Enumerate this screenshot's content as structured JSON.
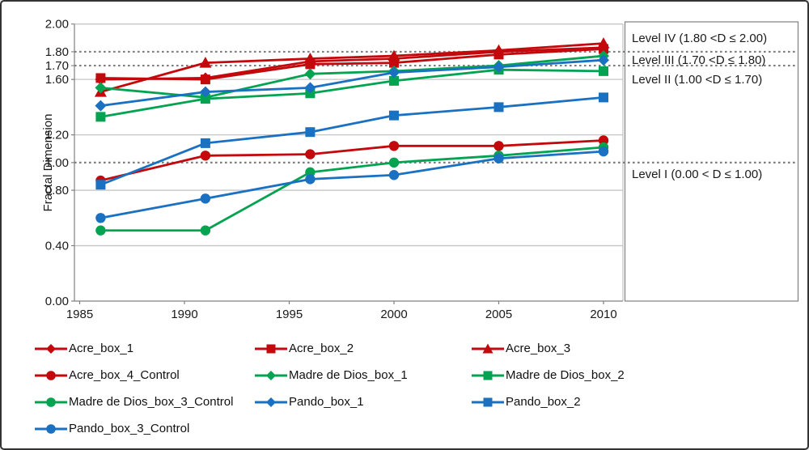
{
  "window": {
    "background": "#ffffff",
    "border_color": "#333333"
  },
  "colors": {
    "acre_red": "#C3090C",
    "madre_green": "#04A351",
    "pando_blue": "#1A71C2",
    "solid_gridline": "#C6C6C6",
    "dotted_gridline": "#7F7F7F",
    "axis_line": "#808080",
    "text": "#1a1a1a"
  },
  "chart_data": {
    "type": "line",
    "title": "",
    "xlabel": "",
    "ylabel": "Fractal Dimension",
    "xlim": [
      1985,
      2011
    ],
    "ylim": [
      0.0,
      2.0
    ],
    "grid": "horizontal-only",
    "legend_position": "bottom",
    "x": [
      1986,
      1991,
      1996,
      2000,
      2005,
      2010
    ],
    "xtick_labels": [
      "1985",
      "1990",
      "1995",
      "2000",
      "2005",
      "2010"
    ],
    "xticks": [
      1985,
      1990,
      1995,
      2000,
      2005,
      2010
    ],
    "ytick_labels": [
      "0.00",
      "0.40",
      "0.80",
      "1.00",
      "1.20",
      "1.60",
      "1.70",
      "1.80",
      "2.00"
    ],
    "yticks": [
      0.0,
      0.4,
      0.8,
      1.0,
      1.2,
      1.6,
      1.7,
      1.8,
      2.0
    ],
    "solid_gridlines": [
      0.4,
      0.8,
      1.2,
      1.6,
      2.0
    ],
    "dotted_gridlines": [
      1.0,
      1.7,
      1.8
    ],
    "series": [
      {
        "name": "Acre_box_1",
        "color": "#C3090C",
        "marker": "diamond",
        "values": [
          1.6,
          1.61,
          1.73,
          1.75,
          1.8,
          1.83
        ]
      },
      {
        "name": "Acre_box_2",
        "color": "#C3090C",
        "marker": "square",
        "values": [
          1.61,
          1.6,
          1.71,
          1.72,
          1.78,
          1.82
        ]
      },
      {
        "name": "Acre_box_3",
        "color": "#C3090C",
        "marker": "triangle",
        "values": [
          1.51,
          1.72,
          1.75,
          1.77,
          1.81,
          1.86
        ]
      },
      {
        "name": "Acre_box_4_Control",
        "color": "#C3090C",
        "marker": "circle",
        "values": [
          0.87,
          1.05,
          1.06,
          1.12,
          1.12,
          1.16
        ]
      },
      {
        "name": "Madre de Dios_box_1",
        "color": "#04A351",
        "marker": "diamond",
        "values": [
          1.54,
          1.47,
          1.64,
          1.66,
          1.7,
          1.77
        ]
      },
      {
        "name": "Madre de Dios_box_2",
        "color": "#04A351",
        "marker": "square",
        "values": [
          1.33,
          1.46,
          1.5,
          1.59,
          1.67,
          1.66
        ]
      },
      {
        "name": "Madre de Dios_box_3_Control",
        "color": "#04A351",
        "marker": "circle",
        "values": [
          0.51,
          0.51,
          0.93,
          1.0,
          1.05,
          1.11
        ]
      },
      {
        "name": "Pando_box_1",
        "color": "#1A71C2",
        "marker": "diamond",
        "values": [
          1.41,
          1.51,
          1.54,
          1.65,
          1.69,
          1.74
        ]
      },
      {
        "name": "Pando_box_2",
        "color": "#1A71C2",
        "marker": "square",
        "values": [
          0.84,
          1.14,
          1.22,
          1.34,
          1.4,
          1.47
        ]
      },
      {
        "name": "Pando_box_3_Control",
        "color": "#1A71C2",
        "marker": "circle",
        "values": [
          0.6,
          0.74,
          0.88,
          0.91,
          1.03,
          1.08
        ]
      }
    ],
    "annotations": {
      "levels": [
        {
          "label": "Level IV (1.80 <D ≤ 2.00)",
          "band": [
            1.8,
            2.0
          ]
        },
        {
          "label": "Level III (1.70 <D ≤ 1.80)",
          "band": [
            1.7,
            1.8
          ]
        },
        {
          "label": "Level II  (1.00 <D ≤ 1.70)",
          "band": [
            1.0,
            1.7
          ]
        },
        {
          "label": "Level I  (0.00 < D ≤ 1.00)",
          "band": [
            0.0,
            1.0
          ]
        }
      ]
    }
  }
}
